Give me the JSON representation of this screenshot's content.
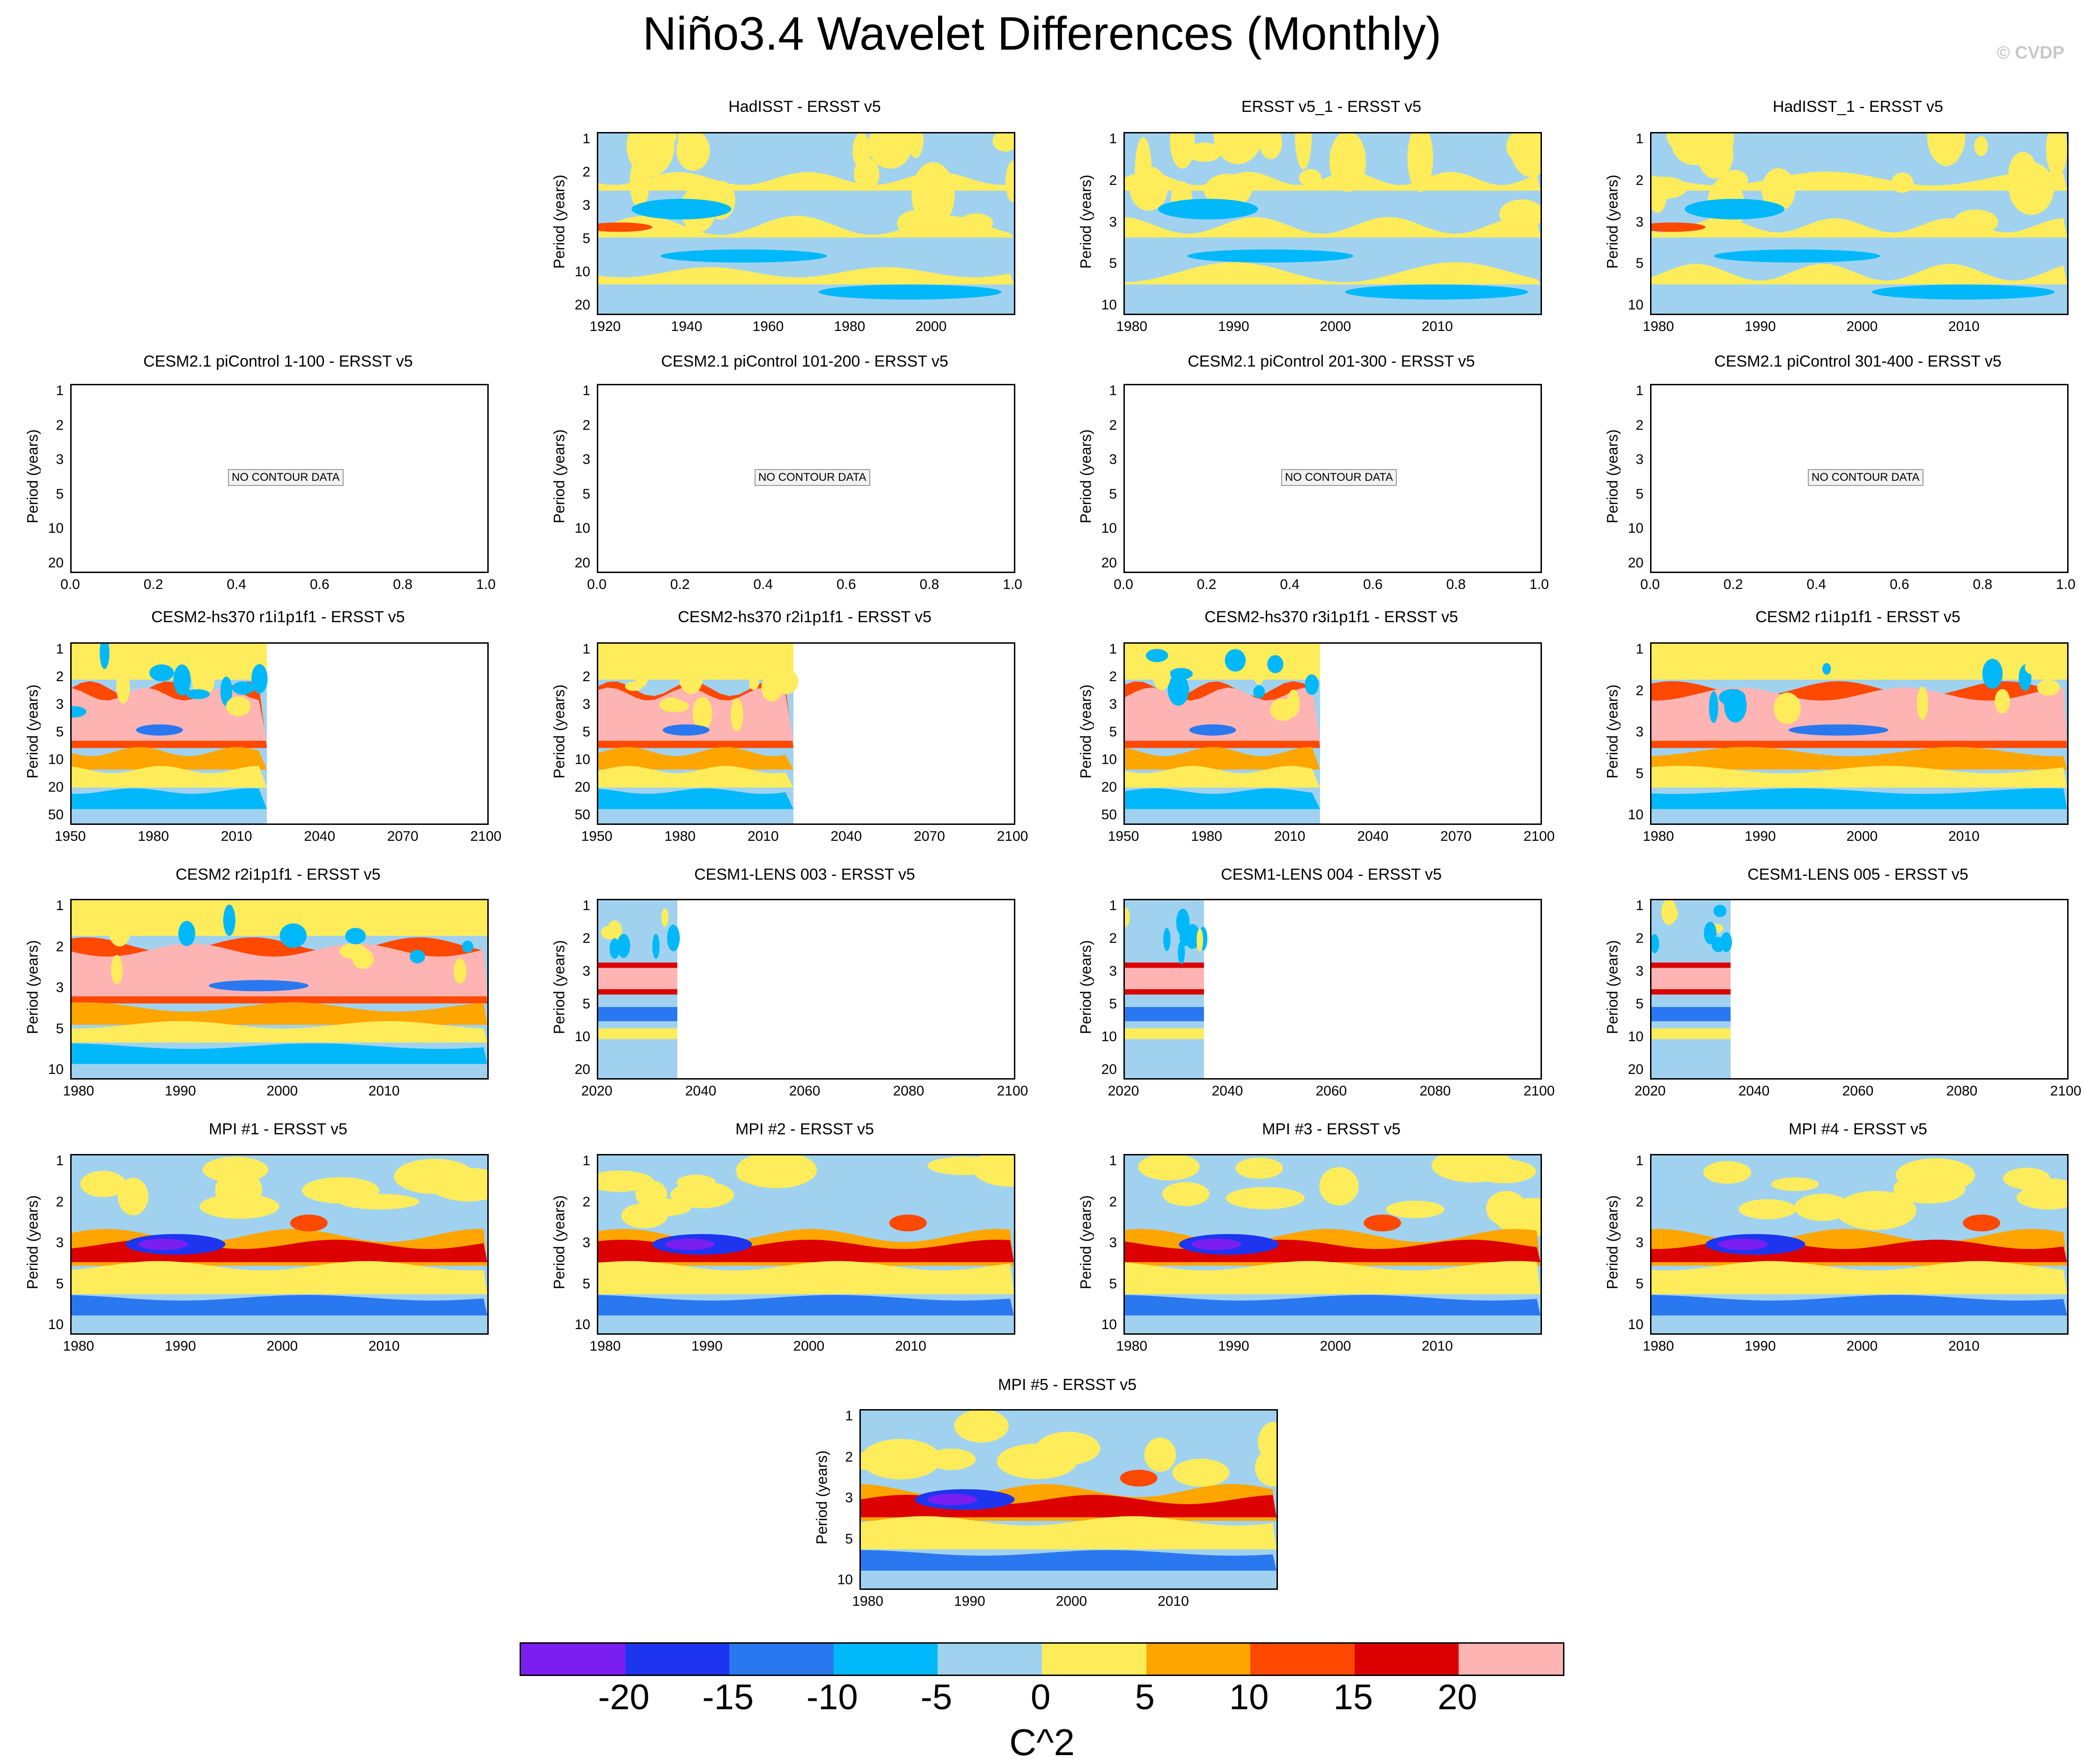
{
  "title": "Niño3.4 Wavelet Differences (Monthly)",
  "watermark": "© CVDP",
  "chart_data": {
    "type": "heatmap",
    "colorbar": {
      "labels": [
        "-20",
        "-15",
        "-10",
        "-5",
        "0",
        "5",
        "10",
        "15",
        "20"
      ],
      "colors": [
        "#7b1ff0",
        "#1e35f0",
        "#2a78f0",
        "#00b8fa",
        "#a0d2f0",
        "#ffec5a",
        "#ffa500",
        "#ff4800",
        "#dc0000",
        "#ffb4b4"
      ],
      "units": "C^2"
    },
    "ylabel": "Period (years)",
    "no_data_text": "NO CONTOUR DATA",
    "panels": [
      {
        "title": "HadISST - ERSST v5",
        "ticks_y": [
          "1",
          "2",
          "3",
          "5",
          "10",
          "20"
        ],
        "ticks_x": [
          "1920",
          "1940",
          "1960",
          "1980",
          "2000"
        ],
        "pattern": "obs"
      },
      {
        "title": "ERSST v5_1 - ERSST v5",
        "ticks_y": [
          "1",
          "2",
          "3",
          "5",
          "10"
        ],
        "ticks_x": [
          "1980",
          "1990",
          "2000",
          "2010"
        ],
        "pattern": "obs"
      },
      {
        "title": "HadISST_1 - ERSST v5",
        "ticks_y": [
          "1",
          "2",
          "3",
          "5",
          "10"
        ],
        "ticks_x": [
          "1980",
          "1990",
          "2000",
          "2010"
        ],
        "pattern": "obs"
      },
      {
        "title": "CESM2.1 piControl 1-100 - ERSST v5",
        "ticks_y": [
          "1",
          "2",
          "3",
          "5",
          "10",
          "20"
        ],
        "ticks_x": [
          "0.0",
          "0.2",
          "0.4",
          "0.6",
          "0.8",
          "1.0"
        ],
        "pattern": "none"
      },
      {
        "title": "CESM2.1 piControl 101-200 - ERSST v5",
        "ticks_y": [
          "1",
          "2",
          "3",
          "5",
          "10",
          "20"
        ],
        "ticks_x": [
          "0.0",
          "0.2",
          "0.4",
          "0.6",
          "0.8",
          "1.0"
        ],
        "pattern": "none"
      },
      {
        "title": "CESM2.1 piControl 201-300 - ERSST v5",
        "ticks_y": [
          "1",
          "2",
          "3",
          "5",
          "10",
          "20"
        ],
        "ticks_x": [
          "0.0",
          "0.2",
          "0.4",
          "0.6",
          "0.8",
          "1.0"
        ],
        "pattern": "none"
      },
      {
        "title": "CESM2.1 piControl 301-400 - ERSST v5",
        "ticks_y": [
          "1",
          "2",
          "3",
          "5",
          "10",
          "20"
        ],
        "ticks_x": [
          "0.0",
          "0.2",
          "0.4",
          "0.6",
          "0.8",
          "1.0"
        ],
        "pattern": "none"
      },
      {
        "title": "CESM2-hs370 r1i1p1f1 - ERSST v5",
        "ticks_y": [
          "1",
          "2",
          "3",
          "5",
          "10",
          "20",
          "50"
        ],
        "ticks_x": [
          "1950",
          "1980",
          "2010",
          "2040",
          "2070",
          "2100"
        ],
        "pattern": "hot",
        "data_fraction": 0.47
      },
      {
        "title": "CESM2-hs370 r2i1p1f1 - ERSST v5",
        "ticks_y": [
          "1",
          "2",
          "3",
          "5",
          "10",
          "20",
          "50"
        ],
        "ticks_x": [
          "1950",
          "1980",
          "2010",
          "2040",
          "2070",
          "2100"
        ],
        "pattern": "hot",
        "data_fraction": 0.47
      },
      {
        "title": "CESM2-hs370 r3i1p1f1 - ERSST v5",
        "ticks_y": [
          "1",
          "2",
          "3",
          "5",
          "10",
          "20",
          "50"
        ],
        "ticks_x": [
          "1950",
          "1980",
          "2010",
          "2040",
          "2070",
          "2100"
        ],
        "pattern": "hot",
        "data_fraction": 0.47
      },
      {
        "title": "CESM2 r1i1p1f1 - ERSST v5",
        "ticks_y": [
          "1",
          "2",
          "3",
          "5",
          "10"
        ],
        "ticks_x": [
          "1980",
          "1990",
          "2000",
          "2010"
        ],
        "pattern": "hot"
      },
      {
        "title": "CESM2 r2i1p1f1 - ERSST v5",
        "ticks_y": [
          "1",
          "2",
          "3",
          "5",
          "10"
        ],
        "ticks_x": [
          "1980",
          "1990",
          "2000",
          "2010"
        ],
        "pattern": "hot"
      },
      {
        "title": "CESM1-LENS 003 - ERSST v5",
        "ticks_y": [
          "1",
          "2",
          "3",
          "5",
          "10",
          "20"
        ],
        "ticks_x": [
          "2020",
          "2040",
          "2060",
          "2080",
          "2100"
        ],
        "pattern": "lens",
        "data_fraction": 0.19
      },
      {
        "title": "CESM1-LENS 004 - ERSST v5",
        "ticks_y": [
          "1",
          "2",
          "3",
          "5",
          "10",
          "20"
        ],
        "ticks_x": [
          "2020",
          "2040",
          "2060",
          "2080",
          "2100"
        ],
        "pattern": "lens",
        "data_fraction": 0.19
      },
      {
        "title": "CESM1-LENS 005 - ERSST v5",
        "ticks_y": [
          "1",
          "2",
          "3",
          "5",
          "10",
          "20"
        ],
        "ticks_x": [
          "2020",
          "2040",
          "2060",
          "2080",
          "2100"
        ],
        "pattern": "lens",
        "data_fraction": 0.19
      },
      {
        "title": "MPI #1 - ERSST v5",
        "ticks_y": [
          "1",
          "2",
          "3",
          "5",
          "10"
        ],
        "ticks_x": [
          "1980",
          "1990",
          "2000",
          "2010"
        ],
        "pattern": "mpi"
      },
      {
        "title": "MPI #2 - ERSST v5",
        "ticks_y": [
          "1",
          "2",
          "3",
          "5",
          "10"
        ],
        "ticks_x": [
          "1980",
          "1990",
          "2000",
          "2010"
        ],
        "pattern": "mpi"
      },
      {
        "title": "MPI #3 - ERSST v5",
        "ticks_y": [
          "1",
          "2",
          "3",
          "5",
          "10"
        ],
        "ticks_x": [
          "1980",
          "1990",
          "2000",
          "2010"
        ],
        "pattern": "mpi"
      },
      {
        "title": "MPI #4 - ERSST v5",
        "ticks_y": [
          "1",
          "2",
          "3",
          "5",
          "10"
        ],
        "ticks_x": [
          "1980",
          "1990",
          "2000",
          "2010"
        ],
        "pattern": "mpi"
      },
      {
        "title": "MPI #5 - ERSST v5",
        "ticks_y": [
          "1",
          "2",
          "3",
          "5",
          "10"
        ],
        "ticks_x": [
          "1980",
          "1990",
          "2000",
          "2010"
        ],
        "pattern": "mpi"
      }
    ]
  }
}
